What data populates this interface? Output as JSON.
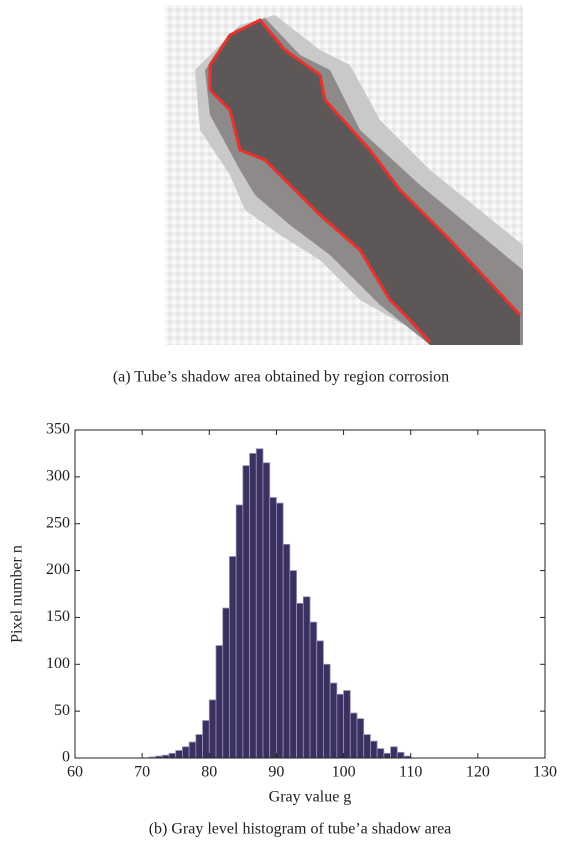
{
  "panel_a": {
    "caption": "(a) Tube’s shadow area obtained by region corrosion"
  },
  "chart_data": {
    "type": "histogram",
    "xlabel": "Gray value g",
    "ylabel": "Pixel number n",
    "caption": "(b) Gray level histogram of tube’a shadow area",
    "bins": [
      70,
      71,
      72,
      73,
      74,
      75,
      76,
      77,
      78,
      79,
      80,
      81,
      82,
      83,
      84,
      85,
      86,
      87,
      88,
      89,
      90,
      91,
      92,
      93,
      94,
      95,
      96,
      97,
      98,
      99,
      100,
      101,
      102,
      103,
      104,
      105,
      106,
      107,
      108,
      109,
      110
    ],
    "values": [
      0,
      1,
      2,
      3,
      5,
      8,
      12,
      17,
      25,
      40,
      62,
      120,
      160,
      215,
      270,
      312,
      325,
      330,
      315,
      278,
      272,
      228,
      200,
      165,
      172,
      145,
      125,
      100,
      80,
      68,
      72,
      48,
      42,
      25,
      18,
      10,
      5,
      12,
      6,
      2
    ],
    "color": "#3b3160",
    "xlim": [
      60,
      130
    ],
    "xticks": [
      60,
      70,
      80,
      90,
      100,
      110,
      120,
      130
    ],
    "ylim": [
      0,
      350
    ],
    "yticks": [
      0,
      50,
      100,
      150,
      200,
      250,
      300,
      350
    ]
  }
}
